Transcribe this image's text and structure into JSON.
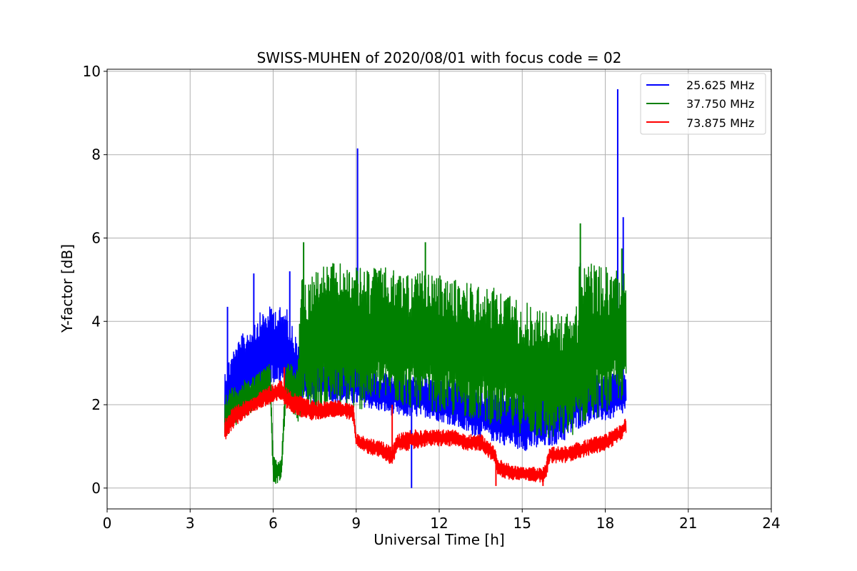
{
  "chart_data": {
    "type": "line",
    "title": "SWISS-MUHEN of 2020/08/01 with focus code = 02",
    "xlabel": "Universal Time [h]",
    "ylabel": "Y-factor [dB]",
    "xlim": [
      0,
      24
    ],
    "ylim": [
      -0.5,
      10.05
    ],
    "xticks": [
      0,
      3,
      6,
      9,
      12,
      15,
      18,
      21,
      24
    ],
    "yticks": [
      0,
      2,
      4,
      6,
      8,
      10
    ],
    "grid": true,
    "legend_position": "top-right",
    "series": [
      {
        "name": "25.625 MHz",
        "color": "#0000ff",
        "x": [
          4.25,
          4.5,
          5.0,
          5.5,
          6.0,
          6.5,
          7.0,
          7.5,
          8.0,
          8.5,
          9.0,
          9.5,
          10.0,
          10.5,
          11.0,
          11.5,
          12.0,
          12.5,
          13.0,
          13.5,
          14.0,
          14.5,
          15.0,
          15.5,
          16.0,
          16.5,
          17.0,
          17.5,
          18.0,
          18.5,
          18.75
        ],
        "low": [
          1.1,
          1.6,
          1.9,
          2.3,
          2.5,
          2.3,
          2.1,
          2.0,
          2.1,
          2.0,
          2.0,
          1.9,
          1.8,
          1.7,
          1.7,
          1.7,
          1.6,
          1.5,
          1.3,
          1.2,
          1.1,
          1.0,
          0.9,
          0.9,
          1.0,
          1.1,
          1.4,
          1.6,
          1.6,
          1.7,
          1.8
        ],
        "high": [
          2.9,
          3.3,
          3.8,
          4.2,
          4.4,
          4.3,
          3.3,
          3.3,
          3.2,
          3.1,
          3.0,
          2.9,
          2.8,
          2.8,
          2.7,
          2.7,
          2.6,
          2.6,
          2.5,
          2.4,
          2.4,
          2.3,
          2.3,
          2.3,
          2.3,
          2.5,
          2.9,
          2.8,
          2.7,
          2.8,
          2.9
        ],
        "spikes": [
          [
            4.35,
            4.35
          ],
          [
            5.3,
            5.15
          ],
          [
            6.6,
            5.2
          ],
          [
            9.05,
            8.15
          ],
          [
            11.0,
            0.0
          ],
          [
            17.1,
            5.4
          ],
          [
            18.45,
            9.57
          ],
          [
            18.65,
            6.5
          ]
        ]
      },
      {
        "name": "37.750 MHz",
        "color": "#008000",
        "x": [
          4.25,
          4.5,
          5.0,
          5.5,
          5.9,
          6.0,
          6.1,
          6.3,
          6.45,
          6.6,
          6.9,
          7.0,
          7.5,
          8.0,
          8.5,
          9.0,
          9.5,
          10.0,
          10.5,
          11.0,
          11.5,
          12.0,
          12.5,
          13.0,
          13.5,
          14.0,
          14.5,
          15.0,
          15.5,
          16.0,
          16.5,
          17.0,
          17.1,
          17.5,
          18.0,
          18.5,
          18.75
        ],
        "low": [
          1.2,
          1.4,
          1.7,
          2.0,
          2.2,
          0.15,
          0.1,
          0.2,
          2.0,
          1.9,
          1.6,
          1.8,
          1.8,
          1.9,
          1.9,
          1.8,
          2.0,
          2.1,
          2.0,
          1.9,
          1.9,
          1.8,
          1.7,
          1.7,
          1.6,
          1.5,
          1.4,
          1.3,
          1.2,
          1.1,
          1.2,
          1.3,
          1.5,
          1.6,
          1.8,
          2.0,
          2.2
        ],
        "high": [
          2.3,
          2.4,
          2.6,
          2.8,
          3.0,
          0.8,
          0.7,
          0.7,
          3.0,
          3.0,
          2.9,
          5.0,
          5.3,
          5.4,
          5.4,
          5.3,
          5.3,
          5.3,
          5.2,
          5.2,
          5.2,
          5.1,
          5.0,
          5.0,
          4.9,
          4.8,
          4.7,
          4.5,
          4.4,
          4.2,
          4.2,
          4.4,
          5.9,
          5.4,
          5.3,
          5.3,
          5.4
        ],
        "spikes": [
          [
            7.1,
            5.9
          ],
          [
            11.5,
            5.9
          ],
          [
            17.1,
            6.35
          ],
          [
            18.6,
            5.75
          ]
        ]
      },
      {
        "name": "73.875 MHz",
        "color": "#ff0000",
        "x": [
          4.25,
          4.5,
          5.0,
          5.5,
          6.0,
          6.3,
          6.5,
          7.0,
          7.5,
          8.0,
          8.5,
          8.9,
          9.0,
          9.5,
          10.0,
          10.3,
          10.5,
          11.0,
          11.5,
          12.0,
          12.5,
          13.0,
          13.5,
          14.0,
          14.1,
          14.5,
          15.0,
          15.5,
          15.8,
          16.0,
          16.5,
          17.0,
          17.5,
          18.0,
          18.5,
          18.75
        ],
        "low": [
          1.1,
          1.4,
          1.7,
          1.9,
          2.0,
          2.1,
          1.9,
          1.7,
          1.6,
          1.7,
          1.7,
          1.6,
          1.0,
          0.8,
          0.7,
          0.5,
          0.9,
          0.9,
          1.0,
          1.0,
          1.0,
          0.9,
          0.9,
          0.6,
          0.3,
          0.2,
          0.2,
          0.15,
          0.1,
          0.6,
          0.6,
          0.7,
          0.8,
          0.9,
          1.1,
          1.3
        ],
        "high": [
          1.7,
          1.9,
          2.1,
          2.3,
          2.5,
          2.6,
          2.4,
          2.2,
          2.1,
          2.1,
          2.1,
          2.0,
          1.3,
          1.2,
          1.1,
          1.0,
          1.3,
          1.4,
          1.4,
          1.4,
          1.4,
          1.3,
          1.3,
          1.0,
          0.7,
          0.6,
          0.5,
          0.5,
          0.5,
          1.0,
          1.0,
          1.1,
          1.2,
          1.3,
          1.5,
          1.7
        ],
        "spikes": [
          [
            6.4,
            2.9
          ],
          [
            10.3,
            2.0
          ],
          [
            14.05,
            0.05
          ],
          [
            15.75,
            0.05
          ]
        ]
      }
    ]
  }
}
